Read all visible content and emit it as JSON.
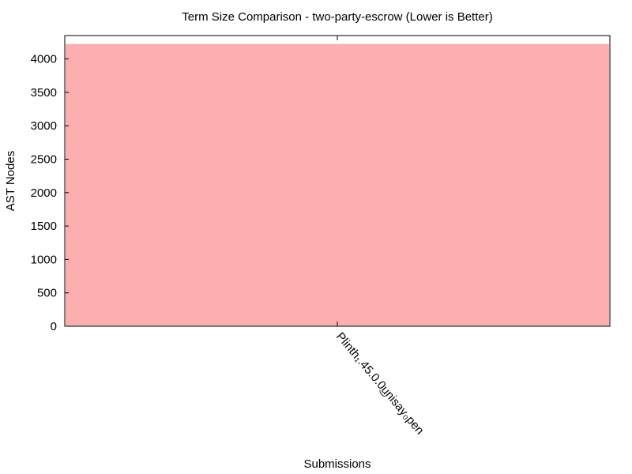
{
  "chart_data": {
    "type": "bar",
    "title": "Term Size Comparison - two-party-escrow (Lower is Better)",
    "xlabel": "Submissions",
    "ylabel": "AST Nodes",
    "categories": [
      "Plinth_1.45.0.0_unisay_open"
    ],
    "category_labels": [
      "Plinth₁.45.0.0͜unisay₀pen"
    ],
    "values": [
      4224
    ],
    "ylim": [
      0,
      4350
    ],
    "yticks": [
      0,
      500,
      1000,
      1500,
      2000,
      2500,
      3000,
      3500,
      4000
    ],
    "grid": false,
    "legend": "none",
    "bar_color": "#fbafaf"
  }
}
